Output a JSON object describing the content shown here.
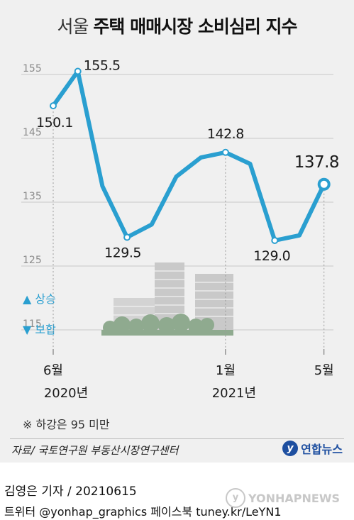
{
  "title": {
    "light": "서울",
    "bold": "주택 매매시장 소비심리 지수"
  },
  "chart_data": {
    "type": "line",
    "title": "서울 주택 매매시장 소비심리 지수",
    "yticks": [
      155,
      145,
      135,
      125,
      115
    ],
    "ylim": [
      111.5,
      157.5
    ],
    "x_count": 12,
    "values": [
      150.1,
      155.5,
      137.5,
      129.5,
      131.5,
      139.0,
      142.0,
      142.8,
      141.0,
      129.0,
      129.8,
      137.8
    ],
    "point_labels": [
      {
        "index": 0,
        "text": "150.1"
      },
      {
        "index": 1,
        "text": "155.5"
      },
      {
        "index": 3,
        "text": "129.5"
      },
      {
        "index": 7,
        "text": "142.8"
      },
      {
        "index": 9,
        "text": "129.0"
      },
      {
        "index": 11,
        "text": "137.8"
      }
    ],
    "x_labels": [
      {
        "index": 0,
        "month": "6월",
        "year": "2020년"
      },
      {
        "index": 7,
        "month": "1월",
        "year": "2021년"
      },
      {
        "index": 11,
        "month": "5월",
        "year": ""
      }
    ],
    "legend_up": "▲ 상승",
    "legend_down": "▼ 보합",
    "line_color": "#2a9fd0"
  },
  "note": "※ 하강은 95 미만",
  "source": "자료/ 국토연구원 부동산시장연구센터",
  "logo": {
    "mark": "y",
    "text": "연합뉴스"
  },
  "footer": {
    "reporter": "김영은 기자 / 20210615",
    "social": "트위터 @yonhap_graphics  페이스북 tuney.kr/LeYN1"
  },
  "watermark": {
    "mark": "y",
    "text": "YONHAPNEWS"
  }
}
